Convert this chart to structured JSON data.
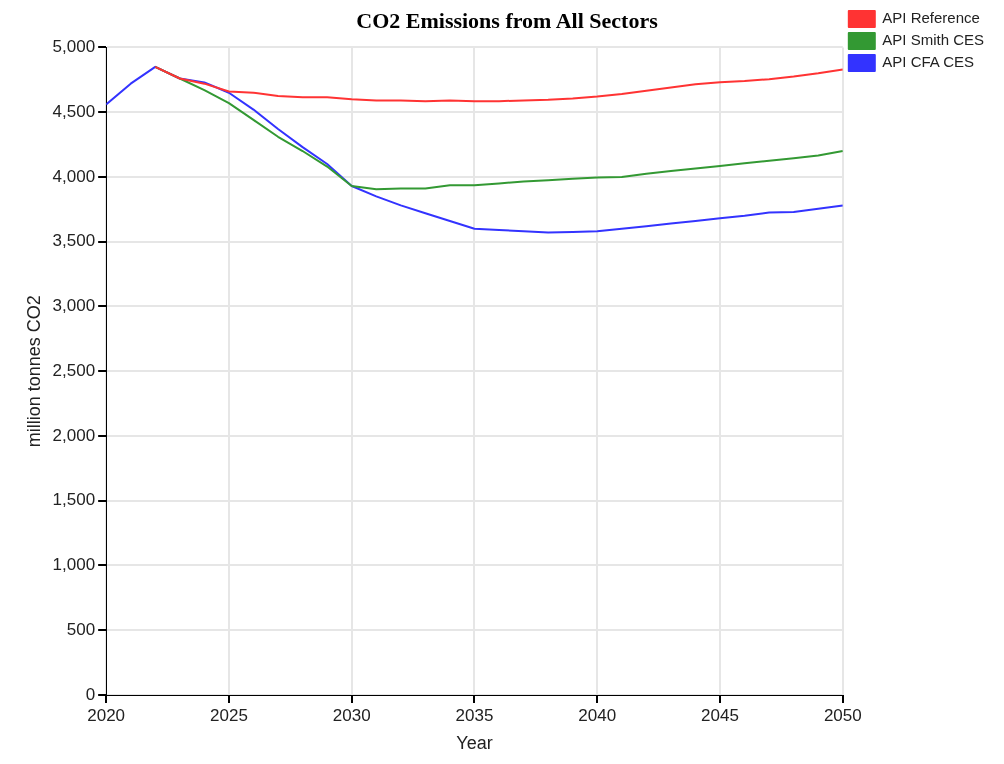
{
  "chart_data": {
    "type": "line",
    "title": "CO2 Emissions from All Sectors",
    "xlabel": "Year",
    "ylabel": "million tonnes CO2",
    "x": [
      2020,
      2021,
      2022,
      2023,
      2024,
      2025,
      2026,
      2027,
      2028,
      2029,
      2030,
      2031,
      2032,
      2033,
      2034,
      2035,
      2036,
      2037,
      2038,
      2039,
      2040,
      2041,
      2042,
      2043,
      2044,
      2045,
      2046,
      2047,
      2048,
      2049,
      2050
    ],
    "series": [
      {
        "name": "API Reference",
        "color": "#ff3333",
        "values": [
          null,
          null,
          4850,
          4760,
          4720,
          4660,
          4650,
          4625,
          4615,
          4615,
          4600,
          4590,
          4590,
          4585,
          4590,
          4585,
          4585,
          4590,
          4595,
          4605,
          4620,
          4640,
          4665,
          4690,
          4715,
          4730,
          4740,
          4755,
          4775,
          4800,
          4830
        ]
      },
      {
        "name": "API Smith CES",
        "color": "#339933",
        "values": [
          null,
          null,
          4850,
          4760,
          4670,
          4570,
          4440,
          4310,
          4200,
          4080,
          3930,
          3905,
          3910,
          3910,
          3935,
          3935,
          3950,
          3965,
          3975,
          3985,
          3995,
          4000,
          4025,
          4045,
          4065,
          4085,
          4105,
          4125,
          4145,
          4165,
          4200
        ]
      },
      {
        "name": "API CFA CES",
        "color": "#3333ff",
        "values": [
          4560,
          4720,
          4850,
          4760,
          4730,
          4650,
          4520,
          4370,
          4230,
          4100,
          3930,
          3850,
          3780,
          3720,
          3660,
          3600,
          3590,
          3580,
          3570,
          3575,
          3580,
          3600,
          3620,
          3640,
          3660,
          3680,
          3700,
          3725,
          3730,
          3755,
          3780
        ]
      }
    ],
    "xlim": [
      2020,
      2050
    ],
    "xticks": [
      2020,
      2025,
      2030,
      2035,
      2040,
      2045,
      2050
    ],
    "ylim": [
      0,
      5000
    ],
    "yticks": [
      {
        "value": 0,
        "label": "0"
      },
      {
        "value": 500,
        "label": "500"
      },
      {
        "value": 1000,
        "label": "1,000"
      },
      {
        "value": 1500,
        "label": "1,500"
      },
      {
        "value": 2000,
        "label": "2,000"
      },
      {
        "value": 2500,
        "label": "2,500"
      },
      {
        "value": 3000,
        "label": "3,000"
      },
      {
        "value": 3500,
        "label": "3,500"
      },
      {
        "value": 4000,
        "label": "4,000"
      },
      {
        "value": 4500,
        "label": "4,500"
      },
      {
        "value": 5000,
        "label": "5,000"
      }
    ],
    "grid": true,
    "legend": "top right",
    "marker": "none",
    "line_style": "solid"
  }
}
